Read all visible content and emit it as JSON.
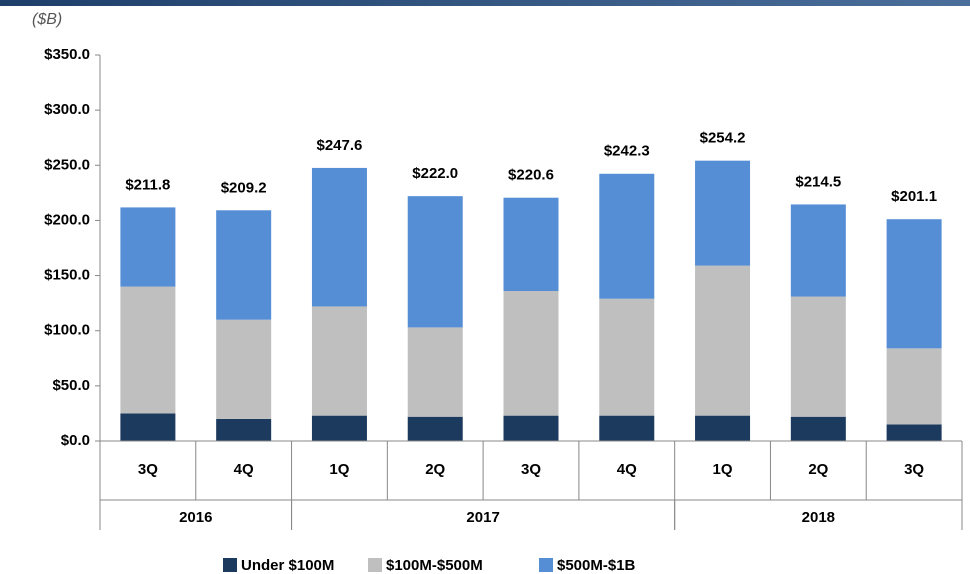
{
  "chart_data": {
    "type": "stacked_bar",
    "subtitle": "($B)",
    "categories": [
      "3Q",
      "4Q",
      "1Q",
      "2Q",
      "3Q",
      "4Q",
      "1Q",
      "2Q",
      "3Q"
    ],
    "x_groups": [
      {
        "name": "2016",
        "span": 2
      },
      {
        "name": "2017",
        "span": 4
      },
      {
        "name": "2018",
        "span": 3
      }
    ],
    "series": [
      {
        "name": "Under $100M",
        "color": "#1b3a5e",
        "values": [
          25,
          20,
          23,
          22,
          23,
          23,
          23,
          22,
          15
        ]
      },
      {
        "name": "$100M-$500M",
        "color": "#bfbfbf",
        "values": [
          115,
          90,
          99,
          81,
          113,
          106,
          136,
          109,
          69
        ]
      },
      {
        "name": "$500M-$1B",
        "color": "#558ed5",
        "values": [
          71.8,
          99.2,
          125.6,
          119,
          84.6,
          113.3,
          95.2,
          83.5,
          117.1
        ]
      }
    ],
    "totals": [
      211.8,
      209.2,
      247.6,
      222.0,
      220.6,
      242.3,
      254.2,
      214.5,
      201.1
    ],
    "total_labels": [
      "$211.8",
      "$209.2",
      "$247.6",
      "$222.0",
      "$220.6",
      "$242.3",
      "$254.2",
      "$214.5",
      "$201.1"
    ],
    "ylim": [
      0,
      350
    ],
    "yticks": [
      {
        "value": 0,
        "label": "$0.0"
      },
      {
        "value": 50,
        "label": "$50.0"
      },
      {
        "value": 100,
        "label": "$100.0"
      },
      {
        "value": 150,
        "label": "$150.0"
      },
      {
        "value": 200,
        "label": "$200.0"
      },
      {
        "value": 250,
        "label": "$250.0"
      },
      {
        "value": 300,
        "label": "$300.0"
      },
      {
        "value": 350,
        "label": "$350.0"
      }
    ],
    "legend": "bottom"
  }
}
